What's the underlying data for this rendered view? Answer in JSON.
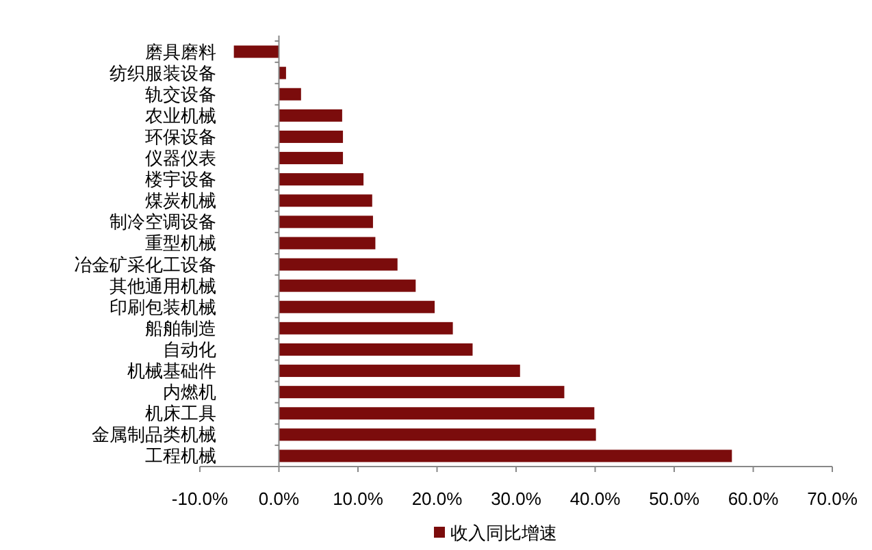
{
  "chart_data": {
    "type": "bar",
    "orientation": "horizontal",
    "legend": "bottom",
    "categories": [
      "磨具磨料",
      "纺织服装设备",
      "轨交设备",
      "农业机械",
      "环保设备",
      "仪器仪表",
      "楼宇设备",
      "煤炭机械",
      "制冷空调设备",
      "重型机械",
      "冶金矿采化工设备",
      "其他通用机械",
      "印刷包装机械",
      "船舶制造",
      "自动化",
      "机械基础件",
      "内燃机",
      "机床工具",
      "金属制品类机械",
      "工程机械"
    ],
    "series": [
      {
        "name": "收入同比增速",
        "color": "#7b0c0c",
        "values": [
          -5.7,
          0.9,
          2.8,
          8.0,
          8.1,
          8.1,
          10.7,
          11.8,
          11.9,
          12.2,
          15.0,
          17.3,
          19.7,
          22.0,
          24.5,
          30.5,
          36.1,
          39.9,
          40.1,
          57.3
        ]
      }
    ],
    "xlim": [
      -10,
      70
    ],
    "xticks": [
      {
        "value": -10,
        "label": "-10.0%"
      },
      {
        "value": 0,
        "label": "0.0%"
      },
      {
        "value": 10,
        "label": "10.0%"
      },
      {
        "value": 20,
        "label": "20.0%"
      },
      {
        "value": 30,
        "label": "30.0%"
      },
      {
        "value": 40,
        "label": "40.0%"
      },
      {
        "value": 50,
        "label": "50.0%"
      },
      {
        "value": 60,
        "label": "60.0%"
      },
      {
        "value": 70,
        "label": "70.0%"
      }
    ]
  }
}
